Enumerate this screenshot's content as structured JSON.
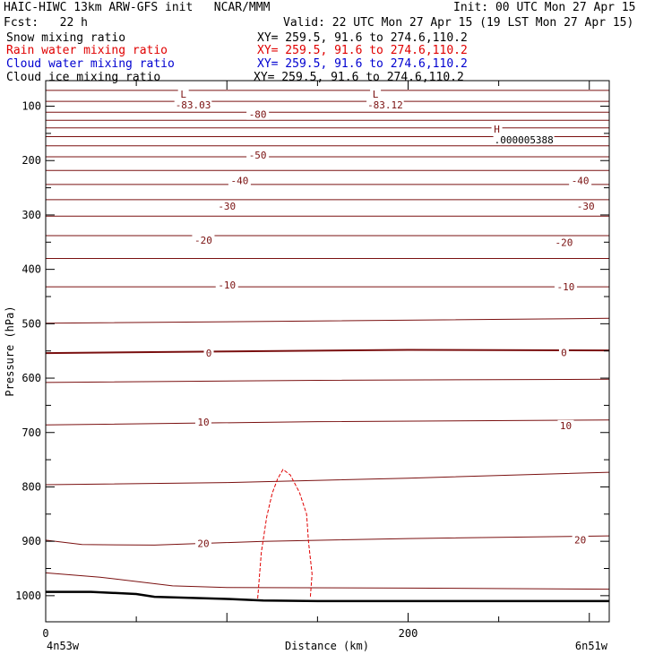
{
  "header": {
    "model_line": "HAIC-HIWC 13km ARW-GFS init   NCAR/MMM",
    "init_line": "Init: 00 UTC Mon 27 Apr 15",
    "fcst_line": "Fcst:   22 h",
    "valid_line": "Valid: 22 UTC Mon 27 Apr 15 (19 LST Mon 27 Apr 15)",
    "fields": [
      {
        "name": "Snow mixing ratio",
        "xy": "XY= 259.5, 91.6 to 274.6,110.2",
        "color": "#000000"
      },
      {
        "name": "Rain water mixing ratio",
        "xy": "XY= 259.5, 91.6 to 274.6,110.2",
        "color": "#e00000"
      },
      {
        "name": "Cloud water mixing ratio",
        "xy": "XY= 259.5, 91.6 to 274.6,110.2",
        "color": "#0000d0"
      },
      {
        "name": "Cloud ice mixing ratio",
        "xy": "XY= 259.5, 91.6 to 274.6,110.2",
        "color": "#000000"
      }
    ]
  },
  "chart_data": {
    "type": "line",
    "xlabel": "Distance (km)",
    "ylabel": "Pressure (hPa)",
    "xlim": [
      0,
      311
    ],
    "ylim": [
      1048,
      53
    ],
    "x_ticks": [
      0,
      200
    ],
    "y_ticks": [
      100,
      200,
      300,
      400,
      500,
      600,
      700,
      800,
      900,
      1000
    ],
    "x_endpoints": {
      "left": "4n53w",
      "right": "6n51w"
    },
    "colors": {
      "isotherm": "#7a1010",
      "rain": "#e00000",
      "terrain": "#000000"
    },
    "isotherm_labels": [
      {
        "text": "-80",
        "x": 117,
        "p": 115
      },
      {
        "text": "-50",
        "x": 117,
        "p": 190
      },
      {
        "text": "-40",
        "x": 107,
        "p": 237
      },
      {
        "text": "-40",
        "x": 295,
        "p": 237
      },
      {
        "text": "-30",
        "x": 100,
        "p": 284
      },
      {
        "text": "-30",
        "x": 298,
        "p": 284
      },
      {
        "text": "-20",
        "x": 87,
        "p": 346
      },
      {
        "text": "-20",
        "x": 286,
        "p": 350
      },
      {
        "text": "-10",
        "x": 100,
        "p": 429
      },
      {
        "text": "-10",
        "x": 287,
        "p": 432
      },
      {
        "text": "0",
        "x": 90,
        "p": 554
      },
      {
        "text": "0",
        "x": 286,
        "p": 553
      },
      {
        "text": "10",
        "x": 87,
        "p": 681
      },
      {
        "text": "10",
        "x": 287,
        "p": 687
      },
      {
        "text": "20",
        "x": 87,
        "p": 904
      },
      {
        "text": "20",
        "x": 295,
        "p": 897
      }
    ],
    "extrema": [
      {
        "symbol": "L",
        "value": "-83.03",
        "x": 75,
        "p": 73
      },
      {
        "symbol": "L",
        "value": "-83.12",
        "x": 181,
        "p": 73
      },
      {
        "symbol": "H",
        "value": ".000005388",
        "x": 248,
        "p": 137
      }
    ],
    "isotherms_series": [
      {
        "x": [
          0,
          311
        ],
        "y": [
          71,
          71
        ]
      },
      {
        "x": [
          0,
          311
        ],
        "y": [
          91,
          91
        ]
      },
      {
        "x": [
          0,
          311
        ],
        "y": [
          111,
          111
        ]
      },
      {
        "x": [
          0,
          311
        ],
        "y": [
          126,
          126
        ]
      },
      {
        "x": [
          0,
          311
        ],
        "y": [
          140,
          140
        ]
      },
      {
        "x": [
          0,
          311
        ],
        "y": [
          156,
          156
        ]
      },
      {
        "x": [
          0,
          311
        ],
        "y": [
          173,
          173
        ]
      },
      {
        "x": [
          0,
          311
        ],
        "y": [
          193,
          193
        ]
      },
      {
        "x": [
          0,
          311
        ],
        "y": [
          218,
          218
        ]
      },
      {
        "x": [
          0,
          311
        ],
        "y": [
          244,
          244
        ]
      },
      {
        "x": [
          0,
          311
        ],
        "y": [
          272,
          272
        ]
      },
      {
        "x": [
          0,
          311
        ],
        "y": [
          302,
          302
        ]
      },
      {
        "x": [
          0,
          311
        ],
        "y": [
          338,
          338
        ]
      },
      {
        "x": [
          0,
          311
        ],
        "y": [
          380,
          380
        ]
      },
      {
        "x": [
          0,
          311
        ],
        "y": [
          432,
          432
        ]
      },
      {
        "x": [
          0,
          150,
          311
        ],
        "y": [
          499,
          495,
          490
        ]
      },
      {
        "x": [
          0,
          100,
          200,
          311
        ],
        "y": [
          554,
          551,
          548,
          549
        ]
      },
      {
        "x": [
          0,
          150,
          311
        ],
        "y": [
          608,
          604,
          602
        ]
      },
      {
        "x": [
          0,
          150,
          311
        ],
        "y": [
          686,
          680,
          677
        ]
      },
      {
        "x": [
          0,
          100,
          200,
          311
        ],
        "y": [
          796,
          792,
          784,
          773
        ]
      },
      {
        "x": [
          0,
          20,
          60,
          120,
          200,
          311
        ],
        "y": [
          898,
          906,
          907,
          900,
          895,
          890
        ]
      },
      {
        "x": [
          0,
          30,
          70,
          100,
          200,
          311
        ],
        "y": [
          958,
          966,
          982,
          985,
          986,
          988
        ]
      }
    ],
    "terrain_series": {
      "x": [
        0,
        10,
        25,
        50,
        60,
        100,
        120,
        150,
        200,
        311
      ],
      "y": [
        993,
        993,
        993,
        997,
        1002,
        1006,
        1009,
        1010,
        1010,
        1010
      ]
    },
    "rain_contour": {
      "x": [
        117,
        119,
        122,
        125,
        128,
        131,
        135,
        140,
        144,
        145,
        147,
        146
      ],
      "y": [
        1005,
        920,
        855,
        812,
        785,
        768,
        778,
        810,
        850,
        900,
        960,
        1005
      ]
    }
  }
}
